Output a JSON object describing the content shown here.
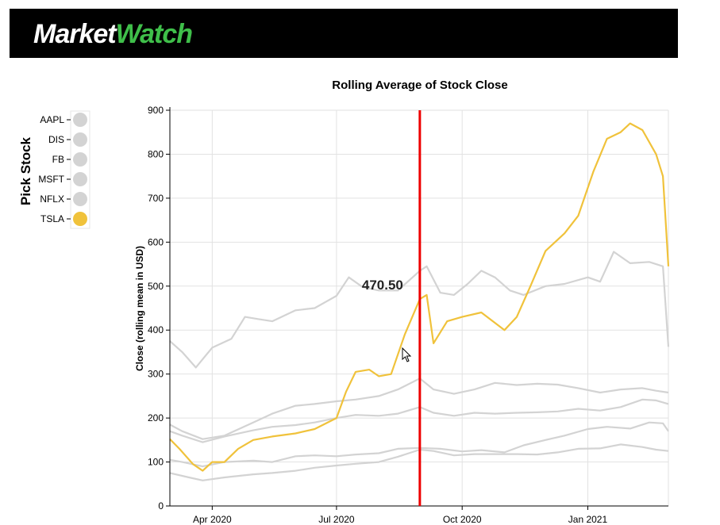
{
  "header": {
    "logo_part1": "Market",
    "logo_part2": "Watch"
  },
  "picker": {
    "title": "Pick Stock",
    "items": [
      {
        "label": "AAPL",
        "selected": false
      },
      {
        "label": "DIS",
        "selected": false
      },
      {
        "label": "FB",
        "selected": false
      },
      {
        "label": "MSFT",
        "selected": false
      },
      {
        "label": "NFLX",
        "selected": false
      },
      {
        "label": "TSLA",
        "selected": true
      }
    ],
    "selected_color": "#f0c23b",
    "unselected_color": "#d3d3d3"
  },
  "tooltip": {
    "value": "470.50",
    "date": "2020-08-31"
  },
  "chart_data": {
    "type": "line",
    "title": "Rolling Average of Stock Close",
    "xlabel": "",
    "ylabel": "Close (rolling mean in USD)",
    "x_range": [
      "2020-03-01",
      "2021-03-01"
    ],
    "ylim": [
      0,
      900
    ],
    "y_ticks": [
      0,
      100,
      200,
      300,
      400,
      500,
      600,
      700,
      800,
      900
    ],
    "x_ticks": [
      {
        "date": "2020-04-01",
        "label": "Apr 2020"
      },
      {
        "date": "2020-07-01",
        "label": "Jul 2020"
      },
      {
        "date": "2020-10-01",
        "label": "Oct 2020"
      },
      {
        "date": "2021-01-01",
        "label": "Jan 2021"
      }
    ],
    "grid": true,
    "highlight_color": "#f0c23b",
    "muted_color": "#d3d3d3",
    "cursor_line_color": "#ee0000",
    "series": [
      {
        "key": "AAPL",
        "points": [
          [
            "2020-03-01",
            75
          ],
          [
            "2020-03-15",
            65
          ],
          [
            "2020-03-25",
            58
          ],
          [
            "2020-04-10",
            65
          ],
          [
            "2020-05-01",
            72
          ],
          [
            "2020-05-15",
            75
          ],
          [
            "2020-06-01",
            80
          ],
          [
            "2020-06-15",
            87
          ],
          [
            "2020-07-01",
            92
          ],
          [
            "2020-07-15",
            96
          ],
          [
            "2020-08-01",
            100
          ],
          [
            "2020-08-15",
            112
          ],
          [
            "2020-08-31",
            128
          ],
          [
            "2020-09-10",
            125
          ],
          [
            "2020-09-25",
            115
          ],
          [
            "2020-10-10",
            118
          ],
          [
            "2020-10-25",
            118
          ],
          [
            "2020-11-10",
            118
          ],
          [
            "2020-11-25",
            117
          ],
          [
            "2020-12-10",
            122
          ],
          [
            "2020-12-25",
            130
          ],
          [
            "2021-01-10",
            131
          ],
          [
            "2021-01-25",
            140
          ],
          [
            "2021-02-10",
            134
          ],
          [
            "2021-02-20",
            128
          ],
          [
            "2021-03-01",
            125
          ]
        ]
      },
      {
        "key": "DIS",
        "points": [
          [
            "2020-03-01",
            105
          ],
          [
            "2020-03-10",
            100
          ],
          [
            "2020-03-25",
            90
          ],
          [
            "2020-04-10",
            100
          ],
          [
            "2020-05-01",
            103
          ],
          [
            "2020-05-15",
            100
          ],
          [
            "2020-06-01",
            113
          ],
          [
            "2020-06-15",
            115
          ],
          [
            "2020-07-01",
            113
          ],
          [
            "2020-07-15",
            117
          ],
          [
            "2020-08-01",
            120
          ],
          [
            "2020-08-15",
            130
          ],
          [
            "2020-08-31",
            132
          ],
          [
            "2020-09-15",
            130
          ],
          [
            "2020-10-01",
            124
          ],
          [
            "2020-10-15",
            127
          ],
          [
            "2020-11-01",
            122
          ],
          [
            "2020-11-15",
            138
          ],
          [
            "2020-12-01",
            150
          ],
          [
            "2020-12-15",
            160
          ],
          [
            "2021-01-01",
            175
          ],
          [
            "2021-01-15",
            180
          ],
          [
            "2021-02-01",
            176
          ],
          [
            "2021-02-15",
            190
          ],
          [
            "2021-02-25",
            188
          ],
          [
            "2021-03-01",
            170
          ]
        ]
      },
      {
        "key": "FB",
        "points": [
          [
            "2020-03-01",
            185
          ],
          [
            "2020-03-10",
            170
          ],
          [
            "2020-03-25",
            152
          ],
          [
            "2020-04-10",
            160
          ],
          [
            "2020-05-01",
            190
          ],
          [
            "2020-05-15",
            210
          ],
          [
            "2020-06-01",
            228
          ],
          [
            "2020-06-15",
            232
          ],
          [
            "2020-07-01",
            238
          ],
          [
            "2020-07-15",
            242
          ],
          [
            "2020-08-01",
            250
          ],
          [
            "2020-08-15",
            265
          ],
          [
            "2020-08-31",
            290
          ],
          [
            "2020-09-10",
            265
          ],
          [
            "2020-09-25",
            255
          ],
          [
            "2020-10-10",
            265
          ],
          [
            "2020-10-25",
            280
          ],
          [
            "2020-11-10",
            275
          ],
          [
            "2020-11-25",
            278
          ],
          [
            "2020-12-10",
            276
          ],
          [
            "2020-12-25",
            268
          ],
          [
            "2021-01-10",
            258
          ],
          [
            "2021-01-25",
            265
          ],
          [
            "2021-02-10",
            268
          ],
          [
            "2021-02-20",
            262
          ],
          [
            "2021-03-01",
            258
          ]
        ]
      },
      {
        "key": "MSFT",
        "points": [
          [
            "2020-03-01",
            170
          ],
          [
            "2020-03-10",
            160
          ],
          [
            "2020-03-25",
            145
          ],
          [
            "2020-04-10",
            158
          ],
          [
            "2020-05-01",
            172
          ],
          [
            "2020-05-15",
            180
          ],
          [
            "2020-06-01",
            184
          ],
          [
            "2020-06-15",
            190
          ],
          [
            "2020-07-01",
            200
          ],
          [
            "2020-07-15",
            207
          ],
          [
            "2020-08-01",
            205
          ],
          [
            "2020-08-15",
            210
          ],
          [
            "2020-08-31",
            225
          ],
          [
            "2020-09-10",
            212
          ],
          [
            "2020-09-25",
            205
          ],
          [
            "2020-10-10",
            212
          ],
          [
            "2020-10-25",
            210
          ],
          [
            "2020-11-10",
            212
          ],
          [
            "2020-11-25",
            213
          ],
          [
            "2020-12-10",
            215
          ],
          [
            "2020-12-25",
            221
          ],
          [
            "2021-01-10",
            217
          ],
          [
            "2021-01-25",
            225
          ],
          [
            "2021-02-10",
            242
          ],
          [
            "2021-02-20",
            240
          ],
          [
            "2021-03-01",
            232
          ]
        ]
      },
      {
        "key": "NFLX",
        "points": [
          [
            "2020-03-01",
            375
          ],
          [
            "2020-03-10",
            350
          ],
          [
            "2020-03-20",
            315
          ],
          [
            "2020-04-01",
            360
          ],
          [
            "2020-04-15",
            380
          ],
          [
            "2020-04-25",
            430
          ],
          [
            "2020-05-05",
            425
          ],
          [
            "2020-05-15",
            420
          ],
          [
            "2020-06-01",
            445
          ],
          [
            "2020-06-15",
            450
          ],
          [
            "2020-07-01",
            478
          ],
          [
            "2020-07-10",
            520
          ],
          [
            "2020-07-20",
            498
          ],
          [
            "2020-08-01",
            490
          ],
          [
            "2020-08-15",
            490
          ],
          [
            "2020-08-31",
            535
          ],
          [
            "2020-09-05",
            545
          ],
          [
            "2020-09-15",
            485
          ],
          [
            "2020-09-25",
            480
          ],
          [
            "2020-10-05",
            505
          ],
          [
            "2020-10-15",
            535
          ],
          [
            "2020-10-25",
            520
          ],
          [
            "2020-11-05",
            490
          ],
          [
            "2020-11-15",
            480
          ],
          [
            "2020-12-01",
            500
          ],
          [
            "2020-12-15",
            505
          ],
          [
            "2021-01-01",
            520
          ],
          [
            "2021-01-10",
            510
          ],
          [
            "2021-01-20",
            578
          ],
          [
            "2021-02-01",
            552
          ],
          [
            "2021-02-15",
            555
          ],
          [
            "2021-02-25",
            545
          ],
          [
            "2021-03-01",
            362
          ]
        ]
      },
      {
        "key": "TSLA",
        "points": [
          [
            "2020-03-01",
            152
          ],
          [
            "2020-03-08",
            130
          ],
          [
            "2020-03-18",
            95
          ],
          [
            "2020-03-25",
            80
          ],
          [
            "2020-04-01",
            100
          ],
          [
            "2020-04-10",
            100
          ],
          [
            "2020-04-20",
            130
          ],
          [
            "2020-05-01",
            150
          ],
          [
            "2020-05-15",
            158
          ],
          [
            "2020-06-01",
            165
          ],
          [
            "2020-06-15",
            175
          ],
          [
            "2020-07-01",
            200
          ],
          [
            "2020-07-08",
            260
          ],
          [
            "2020-07-15",
            305
          ],
          [
            "2020-07-25",
            310
          ],
          [
            "2020-08-01",
            295
          ],
          [
            "2020-08-10",
            300
          ],
          [
            "2020-08-20",
            390
          ],
          [
            "2020-08-31",
            470.5
          ],
          [
            "2020-09-05",
            480
          ],
          [
            "2020-09-10",
            370
          ],
          [
            "2020-09-20",
            420
          ],
          [
            "2020-10-01",
            430
          ],
          [
            "2020-10-15",
            440
          ],
          [
            "2020-11-01",
            400
          ],
          [
            "2020-11-10",
            430
          ],
          [
            "2020-11-20",
            500
          ],
          [
            "2020-12-01",
            580
          ],
          [
            "2020-12-15",
            620
          ],
          [
            "2020-12-25",
            660
          ],
          [
            "2021-01-05",
            760
          ],
          [
            "2021-01-15",
            835
          ],
          [
            "2021-01-25",
            850
          ],
          [
            "2021-02-01",
            870
          ],
          [
            "2021-02-10",
            855
          ],
          [
            "2021-02-20",
            800
          ],
          [
            "2021-02-25",
            750
          ],
          [
            "2021-03-01",
            545
          ]
        ]
      }
    ]
  }
}
